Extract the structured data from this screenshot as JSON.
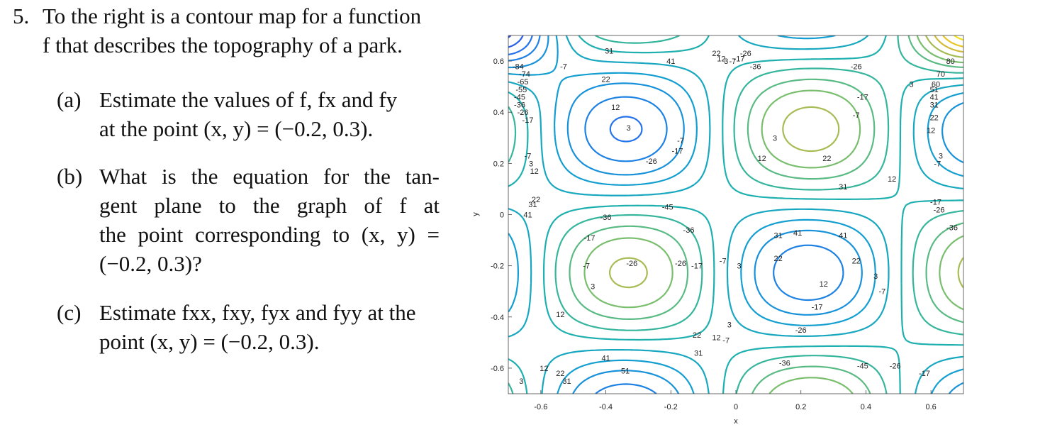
{
  "problem": {
    "number": "5.",
    "stem_lines": [
      "To the right is a contour map for a function",
      "f that describes the topography of a park."
    ],
    "parts": [
      {
        "label": "(a)",
        "lines": [
          "Estimate the values of f, fx and fy",
          "at the point (x, y) = (−0.2, 0.3)."
        ]
      },
      {
        "label": "(b)",
        "lines": [
          "What is the equation for the tan-",
          "gent plane to the graph of f at",
          "the point corresponding to (x, y) =",
          "(−0.2, 0.3)?"
        ]
      },
      {
        "label": "(c)",
        "lines": [
          "Estimate fxx, fxy, fyx and fyy at the",
          "point (x, y) = (−0.2, 0.3)."
        ]
      }
    ]
  },
  "chart_data": {
    "type": "contour",
    "xlabel": "x",
    "ylabel": "y",
    "xlim": [
      -0.7,
      0.7
    ],
    "ylim": [
      -0.7,
      0.7
    ],
    "xticks": [
      "-0.6",
      "-0.4",
      "-0.2",
      "0",
      "0.2",
      "0.4",
      "0.6"
    ],
    "yticks": [
      "-0.6",
      "-0.4",
      "-0.2",
      "0",
      "0.2",
      "0.4",
      "0.6"
    ],
    "levels": [
      -84,
      -74,
      -65,
      -55,
      -45,
      -36,
      -26,
      -17,
      -7,
      3,
      12,
      22,
      31,
      41,
      51,
      60,
      70,
      80
    ],
    "colormap": "parula",
    "contour_labels": [
      {
        "x": -0.67,
        "y": 0.58,
        "text": "-84"
      },
      {
        "x": -0.65,
        "y": 0.55,
        "text": "-74"
      },
      {
        "x": -0.655,
        "y": 0.52,
        "text": "-65"
      },
      {
        "x": -0.66,
        "y": 0.49,
        "text": "-55"
      },
      {
        "x": -0.665,
        "y": 0.46,
        "text": "-45"
      },
      {
        "x": -0.665,
        "y": 0.43,
        "text": "-36"
      },
      {
        "x": -0.655,
        "y": 0.4,
        "text": "-26"
      },
      {
        "x": -0.64,
        "y": 0.37,
        "text": "-17"
      },
      {
        "x": -0.64,
        "y": 0.23,
        "text": "-7"
      },
      {
        "x": -0.63,
        "y": 0.2,
        "text": "3"
      },
      {
        "x": -0.62,
        "y": 0.17,
        "text": "12"
      },
      {
        "x": -0.615,
        "y": 0.06,
        "text": "22"
      },
      {
        "x": -0.625,
        "y": 0.04,
        "text": "31"
      },
      {
        "x": -0.64,
        "y": 0.0,
        "text": "41"
      },
      {
        "x": -0.53,
        "y": 0.58,
        "text": "-7"
      },
      {
        "x": -0.39,
        "y": 0.64,
        "text": "31"
      },
      {
        "x": -0.4,
        "y": 0.53,
        "text": "22"
      },
      {
        "x": -0.37,
        "y": 0.42,
        "text": "12"
      },
      {
        "x": -0.33,
        "y": 0.34,
        "text": "3"
      },
      {
        "x": -0.2,
        "y": 0.6,
        "text": "41"
      },
      {
        "x": -0.17,
        "y": 0.29,
        "text": "-7"
      },
      {
        "x": -0.18,
        "y": 0.25,
        "text": "-17"
      },
      {
        "x": -0.26,
        "y": 0.21,
        "text": "-26"
      },
      {
        "x": -0.4,
        "y": -0.01,
        "text": "-36"
      },
      {
        "x": -0.21,
        "y": 0.03,
        "text": "-45"
      },
      {
        "x": -0.145,
        "y": -0.06,
        "text": "-36"
      },
      {
        "x": -0.45,
        "y": -0.09,
        "text": "-17"
      },
      {
        "x": -0.46,
        "y": -0.2,
        "text": "-7"
      },
      {
        "x": -0.32,
        "y": -0.19,
        "text": "-26"
      },
      {
        "x": -0.17,
        "y": -0.19,
        "text": "-26"
      },
      {
        "x": -0.12,
        "y": -0.2,
        "text": "-17"
      },
      {
        "x": -0.04,
        "y": -0.18,
        "text": "-7"
      },
      {
        "x": -0.44,
        "y": -0.28,
        "text": "3"
      },
      {
        "x": -0.54,
        "y": -0.39,
        "text": "12"
      },
      {
        "x": -0.12,
        "y": -0.47,
        "text": "22"
      },
      {
        "x": -0.06,
        "y": -0.48,
        "text": "12"
      },
      {
        "x": -0.115,
        "y": -0.54,
        "text": "31"
      },
      {
        "x": -0.02,
        "y": -0.43,
        "text": "3"
      },
      {
        "x": -0.03,
        "y": -0.49,
        "text": "-7"
      },
      {
        "x": -0.4,
        "y": -0.56,
        "text": "41"
      },
      {
        "x": -0.34,
        "y": -0.61,
        "text": "51"
      },
      {
        "x": -0.59,
        "y": -0.6,
        "text": "12"
      },
      {
        "x": -0.54,
        "y": -0.62,
        "text": "22"
      },
      {
        "x": -0.52,
        "y": -0.65,
        "text": "31"
      },
      {
        "x": -0.66,
        "y": -0.65,
        "text": "3"
      },
      {
        "x": -0.06,
        "y": 0.63,
        "text": "22"
      },
      {
        "x": -0.045,
        "y": 0.61,
        "text": "12"
      },
      {
        "x": -0.03,
        "y": 0.6,
        "text": "3"
      },
      {
        "x": -0.01,
        "y": 0.6,
        "text": "-7"
      },
      {
        "x": 0.01,
        "y": 0.61,
        "text": "-17"
      },
      {
        "x": 0.03,
        "y": 0.63,
        "text": "-26"
      },
      {
        "x": 0.06,
        "y": 0.58,
        "text": "-36"
      },
      {
        "x": 0.37,
        "y": 0.58,
        "text": "-26"
      },
      {
        "x": 0.39,
        "y": 0.46,
        "text": "-17"
      },
      {
        "x": 0.37,
        "y": 0.39,
        "text": "-7"
      },
      {
        "x": 0.54,
        "y": 0.51,
        "text": "3"
      },
      {
        "x": 0.12,
        "y": 0.3,
        "text": "3"
      },
      {
        "x": 0.08,
        "y": 0.22,
        "text": "12"
      },
      {
        "x": 0.28,
        "y": 0.22,
        "text": "22"
      },
      {
        "x": 0.33,
        "y": 0.11,
        "text": "31"
      },
      {
        "x": 0.13,
        "y": -0.08,
        "text": "31"
      },
      {
        "x": 0.19,
        "y": -0.07,
        "text": "41"
      },
      {
        "x": 0.33,
        "y": -0.08,
        "text": "41"
      },
      {
        "x": 0.13,
        "y": -0.17,
        "text": "22"
      },
      {
        "x": 0.37,
        "y": -0.18,
        "text": "22"
      },
      {
        "x": 0.27,
        "y": -0.27,
        "text": "12"
      },
      {
        "x": 0.43,
        "y": -0.24,
        "text": "3"
      },
      {
        "x": 0.45,
        "y": -0.3,
        "text": "-7"
      },
      {
        "x": 0.25,
        "y": -0.36,
        "text": "-17"
      },
      {
        "x": 0.01,
        "y": -0.2,
        "text": "3"
      },
      {
        "x": 0.48,
        "y": 0.14,
        "text": "12"
      },
      {
        "x": 0.2,
        "y": -0.45,
        "text": "-26"
      },
      {
        "x": 0.15,
        "y": -0.58,
        "text": "-36"
      },
      {
        "x": 0.39,
        "y": -0.59,
        "text": "-45"
      },
      {
        "x": 0.49,
        "y": -0.59,
        "text": "-26"
      },
      {
        "x": 0.58,
        "y": -0.62,
        "text": "-17"
      },
      {
        "x": 0.66,
        "y": 0.6,
        "text": "80"
      },
      {
        "x": 0.63,
        "y": 0.55,
        "text": "70"
      },
      {
        "x": 0.615,
        "y": 0.51,
        "text": "60"
      },
      {
        "x": 0.61,
        "y": 0.49,
        "text": "51"
      },
      {
        "x": 0.61,
        "y": 0.46,
        "text": "41"
      },
      {
        "x": 0.61,
        "y": 0.43,
        "text": "31"
      },
      {
        "x": 0.61,
        "y": 0.38,
        "text": "22"
      },
      {
        "x": 0.6,
        "y": 0.33,
        "text": "12"
      },
      {
        "x": 0.63,
        "y": 0.23,
        "text": "3"
      },
      {
        "x": 0.62,
        "y": 0.2,
        "text": "-7"
      },
      {
        "x": 0.615,
        "y": 0.05,
        "text": "-17"
      },
      {
        "x": 0.625,
        "y": 0.02,
        "text": "-26"
      },
      {
        "x": 0.665,
        "y": -0.05,
        "text": "-36"
      }
    ]
  },
  "colors": {
    "low": "#3e26a8",
    "mid": "#20b2aa",
    "high": "#f9fb0e"
  }
}
